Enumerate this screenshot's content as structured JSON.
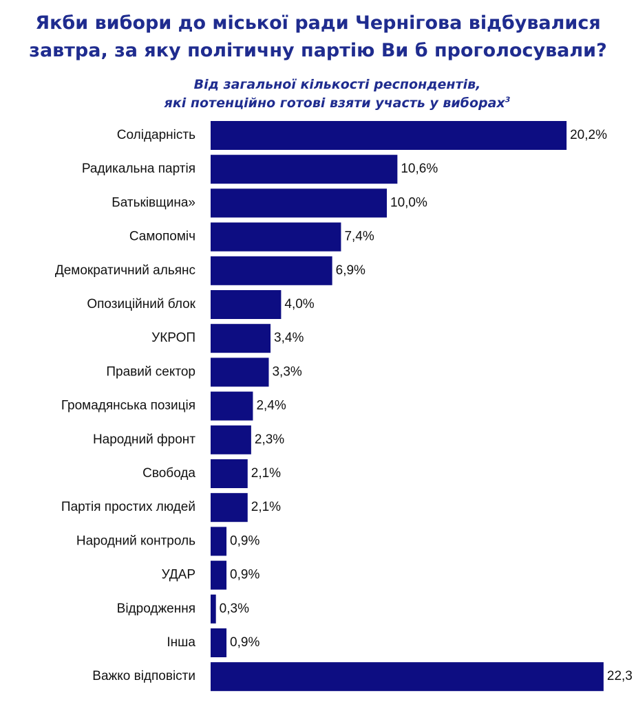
{
  "title": {
    "line1": "Якби вибори до міської ради Чернігова відбувалися",
    "line2": "завтра, за яку політичну партію Ви б проголосували?"
  },
  "subtitle": {
    "line1": "Від загальної кількості респондентів,",
    "line2": "які потенційно готові взяти участь у виборах",
    "footnote": "3"
  },
  "colors": {
    "bar": "#0d0d82",
    "title": "#1f2c8f"
  },
  "chart_data": {
    "type": "bar",
    "orientation": "horizontal",
    "categories": [
      "Солідарність",
      "Радикальна партія",
      "Батьківщина»",
      "Самопоміч",
      "Демократичний альянс",
      "Опозиційний блок",
      "УКРОП",
      "Правий сектор",
      "Громадянська позиція",
      "Народний фронт",
      "Свобода",
      "Партія простих людей",
      "Народний контроль",
      "УДАР",
      "Відродження",
      "Інша",
      "Важко відповісти"
    ],
    "values": [
      20.2,
      10.6,
      10.0,
      7.4,
      6.9,
      4.0,
      3.4,
      3.3,
      2.4,
      2.3,
      2.1,
      2.1,
      0.9,
      0.9,
      0.3,
      0.9,
      22.3
    ],
    "labels": [
      "20,2%",
      "10,6%",
      "10,0%",
      "7,4%",
      "6,9%",
      "4,0%",
      "3,4%",
      "3,3%",
      "2,4%",
      "2,3%",
      "2,1%",
      "2,1%",
      "0,9%",
      "0,9%",
      "0,3%",
      "0,9%",
      "22,3"
    ],
    "unit": "%",
    "grid": false,
    "legend": "none"
  }
}
